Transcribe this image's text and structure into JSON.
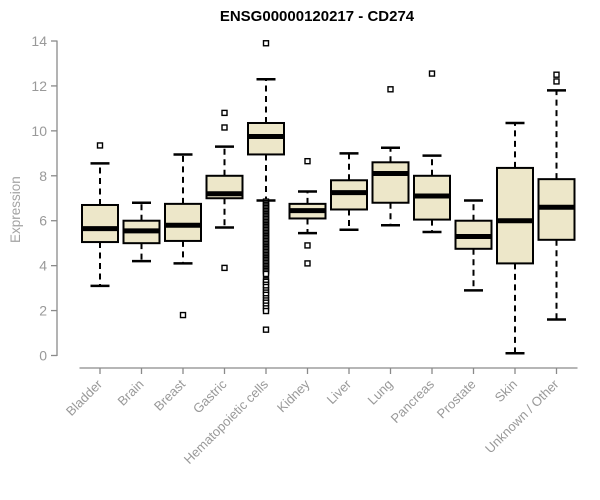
{
  "title": "ENSG00000120217 - CD274",
  "chart_data": {
    "type": "boxplot",
    "title": "ENSG00000120217 - CD274",
    "ylabel": "Expression",
    "xlabel": "",
    "ylim": [
      0,
      14
    ],
    "yticks": [
      0,
      2,
      4,
      6,
      8,
      10,
      12,
      14
    ],
    "grid": false,
    "legend": "none",
    "categories": [
      "Bladder",
      "Brain",
      "Breast",
      "Gastric",
      "Hematopoietic cells",
      "Kidney",
      "Liver",
      "Lung",
      "Pancreas",
      "Prostate",
      "Skin",
      "Unknown / Other"
    ],
    "boxes": [
      {
        "category": "Bladder",
        "whisker_low": 3.1,
        "q1": 5.05,
        "median": 5.65,
        "q3": 6.7,
        "whisker_high": 8.55,
        "outliers": [
          9.35
        ]
      },
      {
        "category": "Brain",
        "whisker_low": 4.2,
        "q1": 5.0,
        "median": 5.55,
        "q3": 6.0,
        "whisker_high": 6.8,
        "outliers": []
      },
      {
        "category": "Breast",
        "whisker_low": 4.1,
        "q1": 5.1,
        "median": 5.8,
        "q3": 6.75,
        "whisker_high": 8.95,
        "outliers": [
          1.8
        ]
      },
      {
        "category": "Gastric",
        "whisker_low": 5.7,
        "q1": 7.0,
        "median": 7.2,
        "q3": 8.0,
        "whisker_high": 9.3,
        "outliers": [
          10.8,
          10.15,
          3.9
        ]
      },
      {
        "category": "Hematopoietic cells",
        "whisker_low": 6.9,
        "q1": 8.95,
        "median": 9.75,
        "q3": 10.35,
        "whisker_high": 12.3,
        "outliers": [
          13.9,
          6.85,
          6.78,
          6.71,
          6.64,
          6.57,
          6.5,
          6.43,
          6.36,
          6.29,
          6.22,
          6.15,
          6.08,
          6.01,
          5.94,
          5.87,
          5.8,
          5.73,
          5.66,
          5.59,
          5.52,
          5.45,
          5.38,
          5.31,
          5.24,
          5.17,
          5.1,
          5.03,
          4.96,
          4.89,
          4.82,
          4.75,
          4.68,
          4.61,
          4.54,
          4.47,
          4.4,
          4.33,
          4.26,
          4.19,
          4.12,
          4.05,
          3.98,
          3.91,
          3.84,
          3.77,
          3.7,
          3.63,
          3.35,
          3.28,
          3.15,
          3.05,
          2.9,
          2.8,
          2.7,
          2.55,
          2.45,
          2.35,
          2.22,
          2.1,
          1.98,
          1.15
        ]
      },
      {
        "category": "Kidney",
        "whisker_low": 5.45,
        "q1": 6.1,
        "median": 6.45,
        "q3": 6.75,
        "whisker_high": 7.3,
        "outliers": [
          8.65,
          4.9,
          4.1
        ]
      },
      {
        "category": "Liver",
        "whisker_low": 5.6,
        "q1": 6.5,
        "median": 7.25,
        "q3": 7.8,
        "whisker_high": 9.0,
        "outliers": []
      },
      {
        "category": "Lung",
        "whisker_low": 5.8,
        "q1": 6.8,
        "median": 8.1,
        "q3": 8.6,
        "whisker_high": 9.25,
        "outliers": [
          11.85
        ]
      },
      {
        "category": "Pancreas",
        "whisker_low": 5.5,
        "q1": 6.05,
        "median": 7.1,
        "q3": 8.0,
        "whisker_high": 8.9,
        "outliers": [
          12.55
        ]
      },
      {
        "category": "Prostate",
        "whisker_low": 2.9,
        "q1": 4.75,
        "median": 5.3,
        "q3": 6.0,
        "whisker_high": 6.9,
        "outliers": []
      },
      {
        "category": "Skin",
        "whisker_low": 0.1,
        "q1": 4.1,
        "median": 6.0,
        "q3": 8.35,
        "whisker_high": 10.35,
        "outliers": []
      },
      {
        "category": "Unknown / Other",
        "whisker_low": 1.6,
        "q1": 5.15,
        "median": 6.6,
        "q3": 7.85,
        "whisker_high": 11.8,
        "outliers": [
          12.5,
          12.2
        ]
      }
    ],
    "colors": {
      "box_fill": "#EDE7C9",
      "line": "#000000",
      "axis": "#8a8a8a",
      "tick_text": "#999999",
      "title_text": "#000000",
      "background": "#ffffff"
    }
  }
}
